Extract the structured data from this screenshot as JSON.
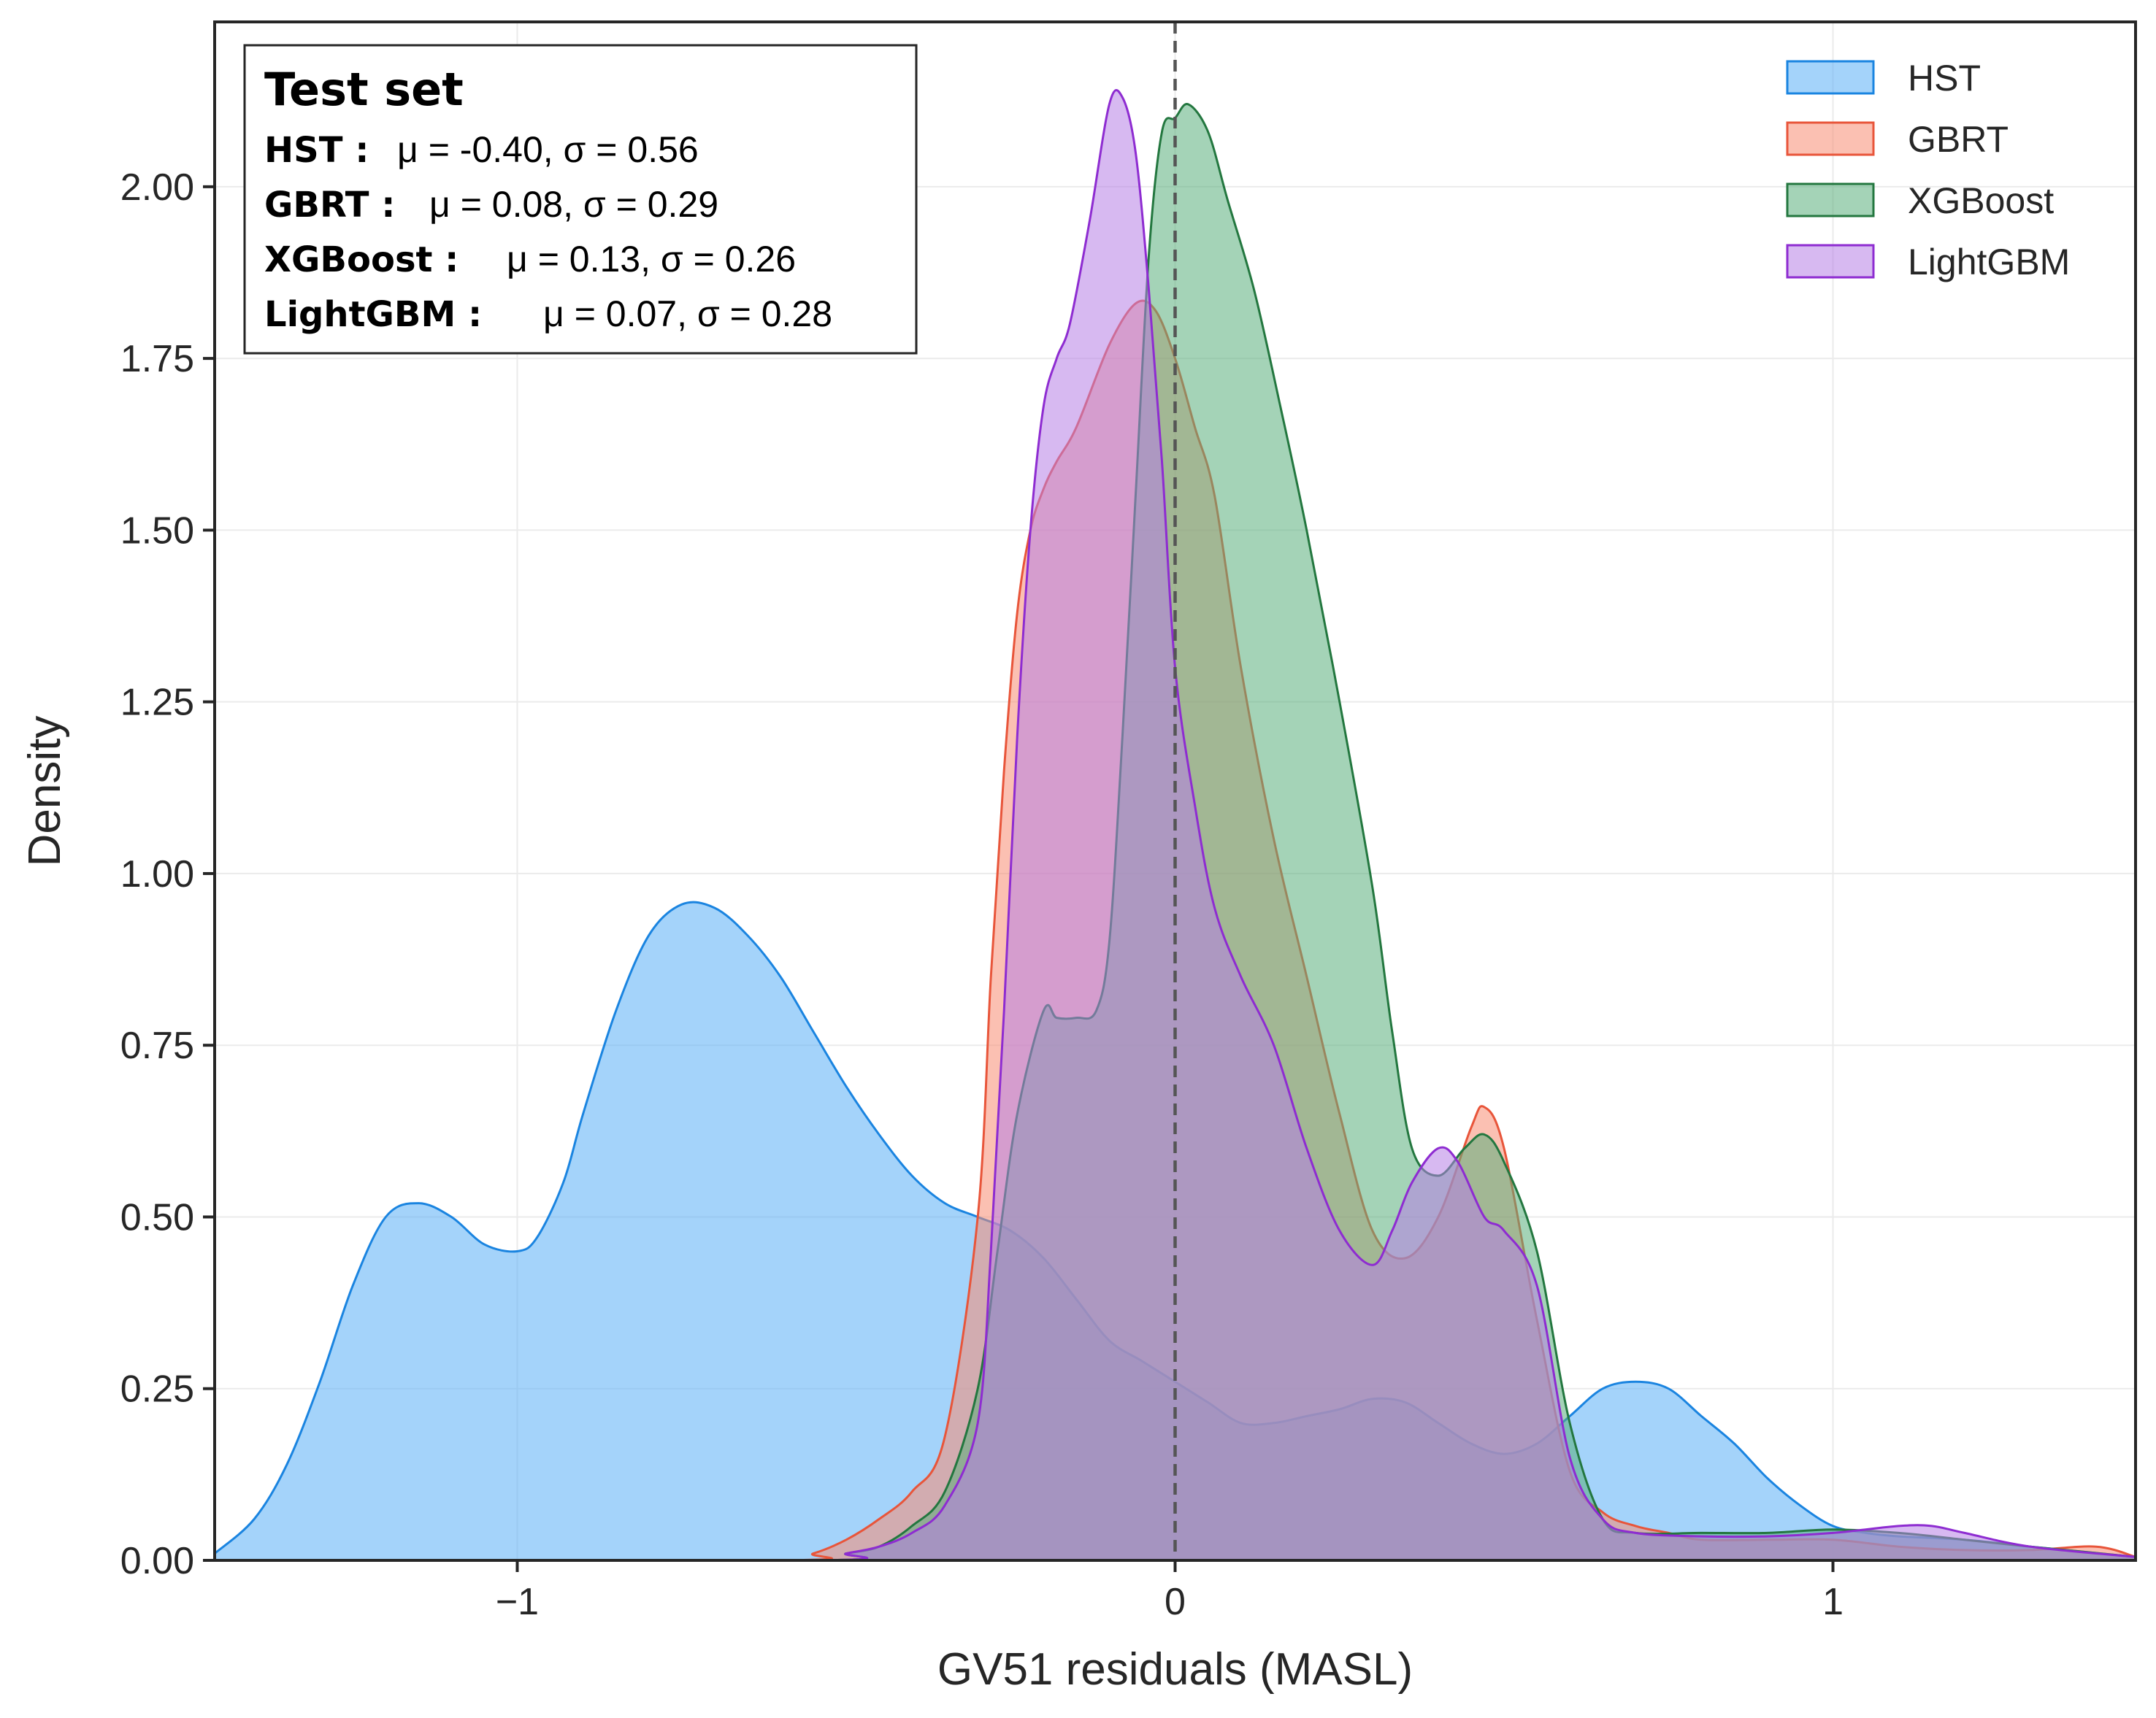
{
  "chart_data": {
    "type": "area",
    "title": "",
    "xlabel": "GV51 residuals (MASL)",
    "ylabel": "Density",
    "xlim": [
      -1.46,
      1.46
    ],
    "ylim": [
      0,
      2.24
    ],
    "x_ticks": [
      -1,
      0,
      1
    ],
    "x_tick_labels": [
      "−1",
      "0",
      "1"
    ],
    "y_ticks": [
      0,
      0.25,
      0.5,
      0.75,
      1.0,
      1.25,
      1.5,
      1.75,
      2.0
    ],
    "y_tick_labels": [
      "0.00",
      "0.25",
      "0.50",
      "0.75",
      "1.00",
      "1.25",
      "1.50",
      "1.75",
      "2.00"
    ],
    "grid": true,
    "reference_line": {
      "x": 0,
      "style": "dashed"
    },
    "legend": {
      "placement": "top-right"
    },
    "stats_box": {
      "placement": "top-left",
      "title": "Test set",
      "rows": [
        {
          "name": "HST :",
          "stat": "μ = -0.40, σ = 0.56"
        },
        {
          "name": "GBRT :",
          "stat": "μ = 0.08, σ = 0.29"
        },
        {
          "name": "XGBoost :",
          "stat": "μ = 0.13, σ = 0.26"
        },
        {
          "name": "LightGBM :",
          "stat": "μ = 0.07, σ = 0.28"
        }
      ]
    },
    "series": [
      {
        "name": "HST",
        "fill": "#5aaef6",
        "stroke": "#1a84e0",
        "x": [
          -1.46,
          -1.4,
          -1.35,
          -1.3,
          -1.25,
          -1.2,
          -1.15,
          -1.1,
          -1.05,
          -1.0,
          -0.97,
          -0.93,
          -0.9,
          -0.85,
          -0.8,
          -0.75,
          -0.7,
          -0.65,
          -0.6,
          -0.55,
          -0.5,
          -0.45,
          -0.4,
          -0.35,
          -0.3,
          -0.25,
          -0.2,
          -0.15,
          -0.1,
          -0.05,
          0.0,
          0.05,
          0.1,
          0.15,
          0.2,
          0.25,
          0.3,
          0.35,
          0.4,
          0.45,
          0.5,
          0.55,
          0.6,
          0.65,
          0.7,
          0.75,
          0.8,
          0.85,
          0.9,
          0.95,
          1.0,
          1.05,
          1.1,
          1.2,
          1.3,
          1.46
        ],
        "y": [
          0.01,
          0.06,
          0.14,
          0.26,
          0.4,
          0.5,
          0.52,
          0.5,
          0.46,
          0.45,
          0.47,
          0.55,
          0.65,
          0.8,
          0.91,
          0.955,
          0.95,
          0.91,
          0.85,
          0.77,
          0.69,
          0.62,
          0.56,
          0.52,
          0.5,
          0.48,
          0.44,
          0.38,
          0.32,
          0.29,
          0.26,
          0.23,
          0.2,
          0.2,
          0.21,
          0.22,
          0.235,
          0.23,
          0.2,
          0.17,
          0.155,
          0.17,
          0.21,
          0.25,
          0.26,
          0.25,
          0.21,
          0.17,
          0.12,
          0.08,
          0.05,
          0.04,
          0.035,
          0.03,
          0.02,
          0.005
        ]
      },
      {
        "name": "GBRT",
        "fill": "#f88c73",
        "stroke": "#e8553a",
        "x": [
          -1.46,
          -0.6,
          -0.55,
          -0.5,
          -0.45,
          -0.4,
          -0.35,
          -0.3,
          -0.28,
          -0.26,
          -0.24,
          -0.22,
          -0.2,
          -0.18,
          -0.15,
          -0.1,
          -0.06,
          -0.03,
          0.0,
          0.03,
          0.06,
          0.1,
          0.15,
          0.2,
          0.25,
          0.3,
          0.35,
          0.4,
          0.45,
          0.47,
          0.5,
          0.55,
          0.6,
          0.65,
          0.7,
          0.75,
          0.8,
          0.9,
          1.0,
          1.1,
          1.2,
          1.3,
          1.4,
          1.46
        ],
        "y": [
          0.0,
          0.0,
          0.01,
          0.03,
          0.06,
          0.1,
          0.18,
          0.5,
          0.85,
          1.15,
          1.38,
          1.5,
          1.56,
          1.6,
          1.65,
          1.77,
          1.83,
          1.82,
          1.75,
          1.65,
          1.55,
          1.3,
          1.05,
          0.85,
          0.65,
          0.48,
          0.44,
          0.5,
          0.63,
          0.66,
          0.6,
          0.35,
          0.13,
          0.07,
          0.05,
          0.04,
          0.03,
          0.03,
          0.03,
          0.02,
          0.015,
          0.015,
          0.02,
          0.005
        ]
      },
      {
        "name": "XGBoost",
        "fill": "#5aaf7b",
        "stroke": "#23773f",
        "x": [
          -1.46,
          -0.55,
          -0.5,
          -0.45,
          -0.4,
          -0.35,
          -0.3,
          -0.27,
          -0.24,
          -0.2,
          -0.18,
          -0.15,
          -0.12,
          -0.1,
          -0.08,
          -0.06,
          -0.04,
          -0.02,
          0.0,
          0.02,
          0.05,
          0.08,
          0.12,
          0.16,
          0.2,
          0.25,
          0.3,
          0.33,
          0.36,
          0.4,
          0.44,
          0.47,
          0.5,
          0.55,
          0.6,
          0.65,
          0.7,
          0.8,
          0.9,
          1.0,
          1.1,
          1.2,
          1.3,
          1.46
        ],
        "y": [
          0.0,
          0.0,
          0.01,
          0.02,
          0.05,
          0.1,
          0.25,
          0.45,
          0.65,
          0.8,
          0.79,
          0.79,
          0.8,
          0.9,
          1.2,
          1.55,
          1.9,
          2.08,
          2.1,
          2.12,
          2.08,
          1.98,
          1.85,
          1.68,
          1.5,
          1.25,
          0.98,
          0.77,
          0.6,
          0.56,
          0.6,
          0.62,
          0.58,
          0.45,
          0.2,
          0.06,
          0.04,
          0.04,
          0.04,
          0.045,
          0.04,
          0.03,
          0.02,
          0.005
        ]
      },
      {
        "name": "LightGBM",
        "fill": "#b77fe6",
        "stroke": "#8e2cd1",
        "x": [
          -1.46,
          -0.55,
          -0.5,
          -0.45,
          -0.4,
          -0.35,
          -0.3,
          -0.28,
          -0.26,
          -0.24,
          -0.22,
          -0.2,
          -0.18,
          -0.16,
          -0.13,
          -0.1,
          -0.08,
          -0.06,
          -0.04,
          -0.02,
          0.0,
          0.03,
          0.06,
          0.1,
          0.15,
          0.2,
          0.25,
          0.3,
          0.33,
          0.36,
          0.4,
          0.43,
          0.47,
          0.5,
          0.55,
          0.6,
          0.65,
          0.7,
          0.8,
          0.9,
          1.0,
          1.1,
          1.15,
          1.2,
          1.3,
          1.46
        ],
        "y": [
          0.0,
          0.0,
          0.01,
          0.02,
          0.04,
          0.08,
          0.2,
          0.45,
          0.8,
          1.2,
          1.5,
          1.68,
          1.75,
          1.8,
          1.95,
          2.12,
          2.13,
          2.05,
          1.85,
          1.6,
          1.3,
          1.1,
          0.95,
          0.85,
          0.75,
          0.6,
          0.48,
          0.43,
          0.48,
          0.55,
          0.6,
          0.58,
          0.5,
          0.48,
          0.4,
          0.15,
          0.06,
          0.04,
          0.035,
          0.035,
          0.04,
          0.05,
          0.05,
          0.04,
          0.02,
          0.005
        ]
      }
    ]
  }
}
